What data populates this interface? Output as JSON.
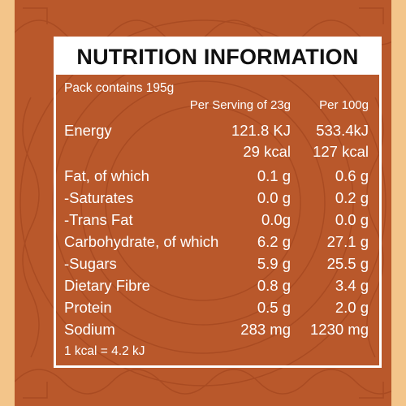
{
  "title": "NUTRITION INFORMATION",
  "pack_contains": "Pack contains 195g",
  "columns": {
    "per_serving": "Per Serving of 23g",
    "per_100g": "Per 100g"
  },
  "rows": [
    {
      "name": "Energy",
      "serving": "121.8 KJ",
      "per100": "533.4kJ"
    },
    {
      "name": "",
      "serving": "29 kcal",
      "per100": "127 kcal"
    },
    {
      "name": "Fat, of which",
      "serving": "0.1 g",
      "per100": "0.6 g"
    },
    {
      "name": "-Saturates",
      "serving": "0.0 g",
      "per100": "0.2 g"
    },
    {
      "name": "-Trans Fat",
      "serving": "0.0g",
      "per100": "0.0 g"
    },
    {
      "name": "Carbohydrate, of which",
      "serving": "6.2 g",
      "per100": "27.1 g"
    },
    {
      "name": "-Sugars",
      "serving": "5.9 g",
      "per100": "25.5 g"
    },
    {
      "name": "Dietary Fibre",
      "serving": "0.8 g",
      "per100": "3.4 g"
    },
    {
      "name": "Protein",
      "serving": "0.5 g",
      "per100": "2.0 g"
    },
    {
      "name": "Sodium",
      "serving": "283 mg",
      "per100": "1230 mg"
    }
  ],
  "footnote": "1 kcal = 4.2 kJ",
  "colors": {
    "background": "#f3c58a",
    "panel": "#b9582b",
    "text": "#ffffff",
    "title_text": "#111111"
  }
}
